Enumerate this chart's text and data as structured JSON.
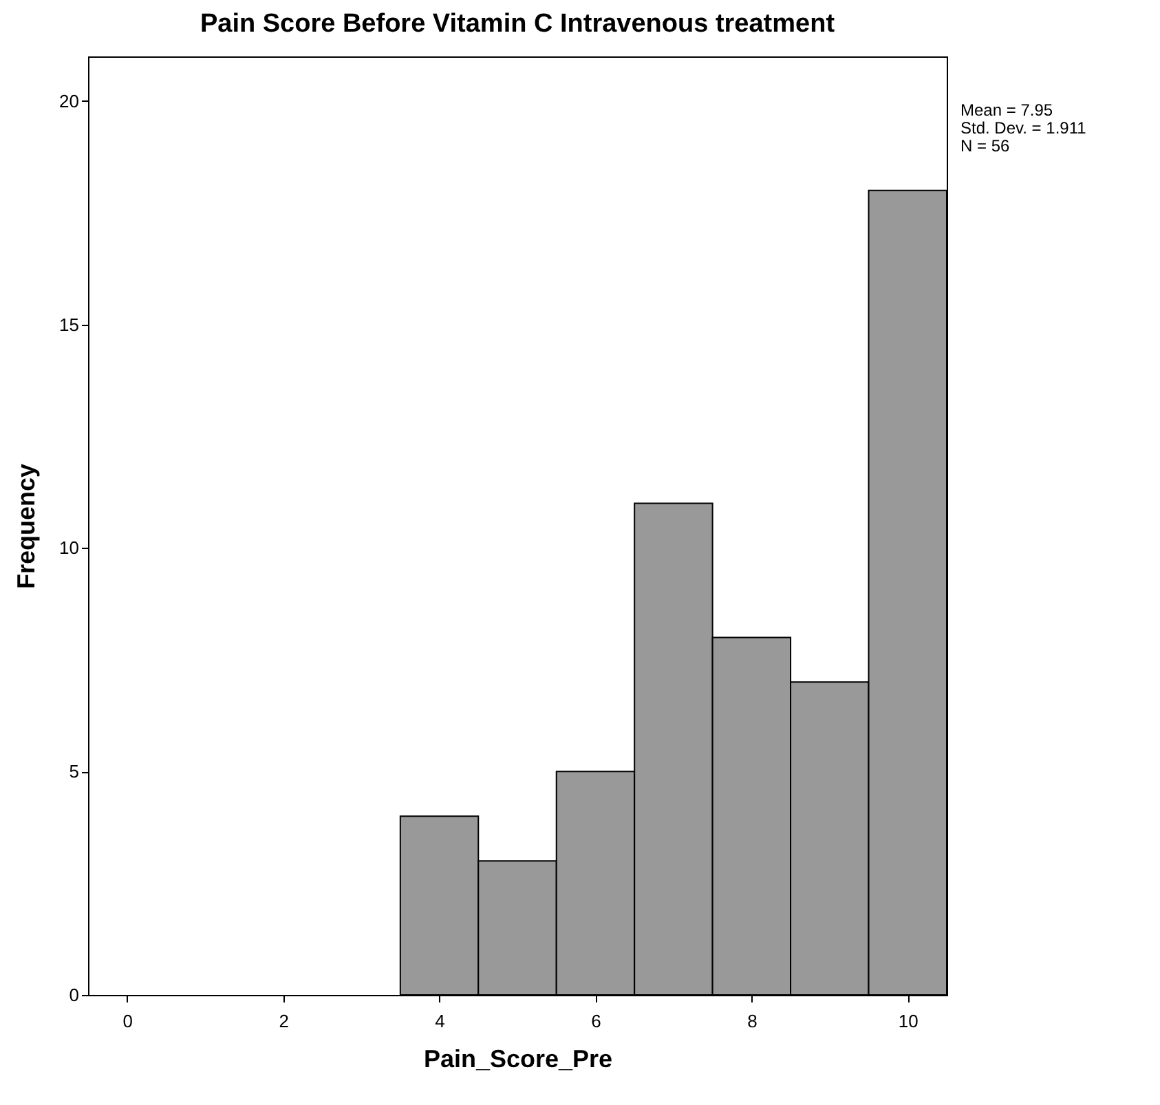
{
  "chart_data": {
    "type": "histogram",
    "title": "Pain Score Before Vitamin C Intravenous treatment",
    "xlabel": "Pain_Score_Pre",
    "ylabel": "Frequency",
    "bins": [
      3.5,
      4.5,
      5.5,
      6.5,
      7.5,
      8.5,
      9.5,
      10.5
    ],
    "values": [
      4,
      3,
      5,
      11,
      8,
      7,
      18
    ],
    "color": "#999999",
    "xlim": [
      -0.5,
      10.5
    ],
    "xticks": [
      0,
      2,
      4,
      6,
      8,
      10
    ],
    "ylim": [
      0,
      21
    ],
    "yticks": [
      0,
      5,
      10,
      15,
      20
    ],
    "grid": false,
    "annotations": [
      "Mean = 7.95",
      "Std. Dev. = 1.911",
      "N = 56"
    ]
  }
}
